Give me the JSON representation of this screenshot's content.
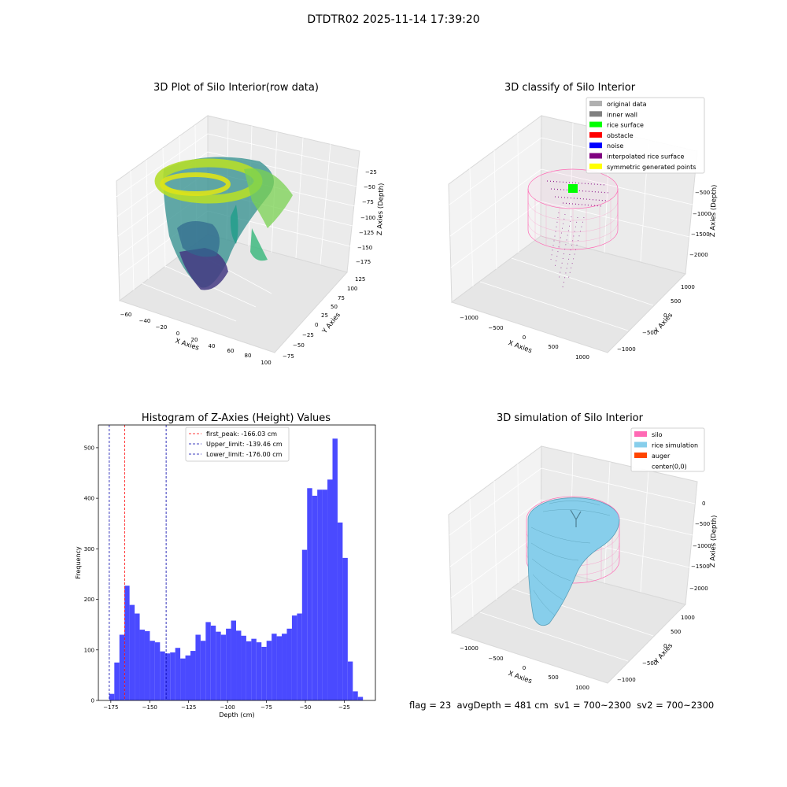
{
  "suptitle": "DTDTR02 2025-11-14 17:39:20",
  "footer": {
    "flag": "flag = 23",
    "avg_depth": "avgDepth = 481 cm",
    "sv1": "sv1 = 700~2300",
    "sv2": "sv2 = 700~2300"
  },
  "panels": {
    "raw": {
      "title": "3D Plot of Silo Interior(row data)",
      "xlabel": "X Axies",
      "ylabel": "Y Axies",
      "zlabel": "Z Axies (Depth)",
      "xticks": [
        "−60",
        "−40",
        "−20",
        "0",
        "20",
        "40",
        "60",
        "80",
        "100"
      ],
      "yticks": [
        "−75",
        "−50",
        "−25",
        "0",
        "25",
        "50",
        "75",
        "100",
        "125"
      ],
      "zticks": [
        "−25",
        "−50",
        "−75",
        "−100",
        "−125",
        "−150",
        "−175"
      ]
    },
    "classify": {
      "title": "3D classify of Silo Interior",
      "xlabel": "X Axies",
      "ylabel": "Y Axies",
      "zlabel": "Z Axies (Depth)",
      "xticks": [
        "−1000",
        "−500",
        "0",
        "500",
        "1000"
      ],
      "yticks": [
        "−1000",
        "−500",
        "0",
        "500",
        "1000"
      ],
      "zticks": [
        "−500",
        "−1000",
        "−1500",
        "−2000"
      ],
      "legend": [
        {
          "label": "original data",
          "color": "#b0b0b0"
        },
        {
          "label": "inner wall",
          "color": "#808080"
        },
        {
          "label": "rice surface",
          "color": "#00ff00"
        },
        {
          "label": "obstacle",
          "color": "#ff0000"
        },
        {
          "label": "noise",
          "color": "#0000ff"
        },
        {
          "label": "interpolated rice surface",
          "color": "#800080"
        },
        {
          "label": "symmetric generated points",
          "color": "#ffff00"
        }
      ]
    },
    "simulation": {
      "title": "3D simulation of Silo Interior",
      "xlabel": "X Axies",
      "ylabel": "Y Axies",
      "zlabel": "Z Axies (Depth)",
      "xticks": [
        "−1000",
        "−500",
        "0",
        "500",
        "1000"
      ],
      "yticks": [
        "−1000",
        "−500",
        "0",
        "500",
        "1000"
      ],
      "zticks": [
        "0",
        "−500",
        "−1000",
        "−1500",
        "−2000"
      ],
      "legend": [
        {
          "label": "silo",
          "color": "#ff69b4"
        },
        {
          "label": "rice simulation",
          "color": "#87ceeb"
        },
        {
          "label": "auger",
          "color": "#ff4500"
        },
        {
          "label": "center(0,0)",
          "color": "#ffffff"
        }
      ]
    }
  },
  "chart_data": {
    "type": "bar",
    "title": "Histogram of Z-Axies (Height) Values",
    "xlabel": "Depth (cm)",
    "ylabel": "Frequency",
    "xlim": [
      -183,
      -5
    ],
    "ylim": [
      0,
      545
    ],
    "bar_color": "#4a4aff",
    "xticks": [
      -175,
      -150,
      -125,
      -100,
      -75,
      -50,
      -25
    ],
    "xtick_labels": [
      "−175",
      "−150",
      "−125",
      "−100",
      "−75",
      "−50",
      "−25"
    ],
    "yticks": [
      0,
      100,
      200,
      300,
      400,
      500
    ],
    "ytick_labels": [
      "0",
      "100",
      "200",
      "300",
      "400",
      "500"
    ],
    "bins_start": -176.0,
    "bin_width": 3.26,
    "values": [
      13,
      75,
      130,
      227,
      189,
      172,
      140,
      137,
      118,
      115,
      97,
      93,
      95,
      104,
      83,
      89,
      98,
      130,
      118,
      155,
      148,
      136,
      130,
      142,
      158,
      138,
      128,
      117,
      122,
      115,
      106,
      118,
      132,
      127,
      132,
      142,
      168,
      172,
      298,
      420,
      405,
      417,
      417,
      437,
      518,
      352,
      282,
      77,
      18,
      7
    ],
    "vlines": [
      {
        "label": "first_peak: -166.03 cm",
        "x": -166.03,
        "color": "#ff0000"
      },
      {
        "label": "Upper_limit: -139.46 cm",
        "x": -139.46,
        "color": "#0000aa"
      },
      {
        "label": "Lower_limit: -176.00 cm",
        "x": -176.0,
        "color": "#0000aa"
      }
    ]
  }
}
